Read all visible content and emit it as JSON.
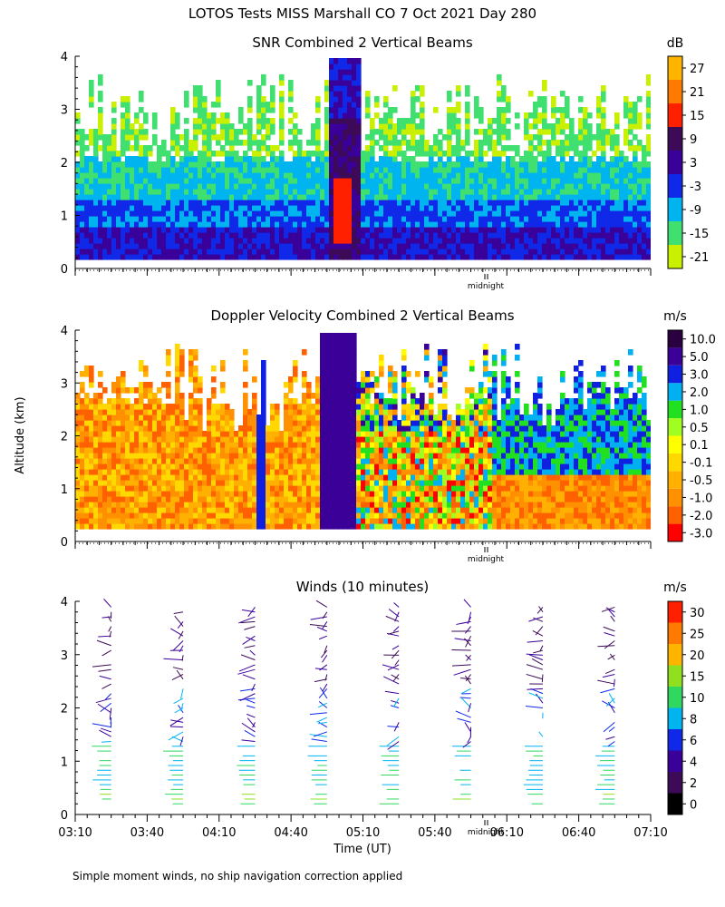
{
  "figure": {
    "header": "LOTOS Tests MISS Marshall CO   7 Oct 2021 Day 280",
    "ylabel_shared": "Altitude (km)",
    "footnote": "Simple moment winds, no ship navigation correction applied"
  },
  "chart_data": [
    {
      "type": "heatmap",
      "name": "snr",
      "title": "SNR Combined 2 Vertical Beams",
      "units": "dB",
      "ylim": [
        0,
        4
      ],
      "yticks": [
        "0",
        "1",
        "2",
        "3",
        "4"
      ],
      "xlim": [
        "03:10",
        "07:10"
      ],
      "marker": "midnight",
      "colorbar": {
        "labels": [
          "-21",
          "-15",
          "-9",
          "-3",
          "3",
          "9",
          "15",
          "21",
          "27"
        ],
        "colors": [
          "#c8f000",
          "#40e070",
          "#00b4f0",
          "#1028e8",
          "#3a009a",
          "#3c0a56",
          "#ff2000",
          "#ff7a00",
          "#ffb400"
        ]
      }
    },
    {
      "type": "heatmap",
      "name": "doppler",
      "title": "Doppler Velocity Combined 2 Vertical Beams",
      "units": "m/s",
      "ylim": [
        0,
        4
      ],
      "yticks": [
        "0",
        "1",
        "2",
        "3",
        "4"
      ],
      "xlim": [
        "03:10",
        "07:10"
      ],
      "marker": "midnight",
      "colorbar": {
        "labels": [
          "-3.0",
          "-2.0",
          "-1.0",
          "-0.5",
          "-0.1",
          "0.1",
          "0.5",
          "1.0",
          "2.0",
          "3.0",
          "5.0",
          "10.0"
        ],
        "colors": [
          "#ff0000",
          "#ff6000",
          "#ff9000",
          "#ffb000",
          "#ffd800",
          "#ffff00",
          "#a0ff20",
          "#20e020",
          "#00b0f0",
          "#1020e0",
          "#3a0098",
          "#2a0040"
        ]
      }
    },
    {
      "type": "scatter",
      "name": "winds",
      "title": "Winds (10 minutes)",
      "units": "m/s",
      "xlabel": "Time (UT)",
      "ylim": [
        0,
        4
      ],
      "yticks": [
        "0",
        "1",
        "2",
        "3",
        "4"
      ],
      "xticks": [
        "03:10",
        "03:40",
        "04:10",
        "04:40",
        "05:10",
        "05:40",
        "06:10",
        "06:40",
        "07:10"
      ],
      "marker": "midnight",
      "profile_times": [
        "03:25",
        "03:55",
        "04:25",
        "04:55",
        "05:25",
        "05:55",
        "06:25",
        "06:55"
      ],
      "colorbar": {
        "labels": [
          "0",
          "2",
          "4",
          "6",
          "8",
          "10",
          "15",
          "20",
          "25",
          "30"
        ],
        "colors": [
          "#000000",
          "#3c0a56",
          "#3a009a",
          "#1028e8",
          "#00b4f0",
          "#30d860",
          "#90e020",
          "#ffb400",
          "#ff7a00",
          "#ff2000"
        ]
      }
    }
  ]
}
